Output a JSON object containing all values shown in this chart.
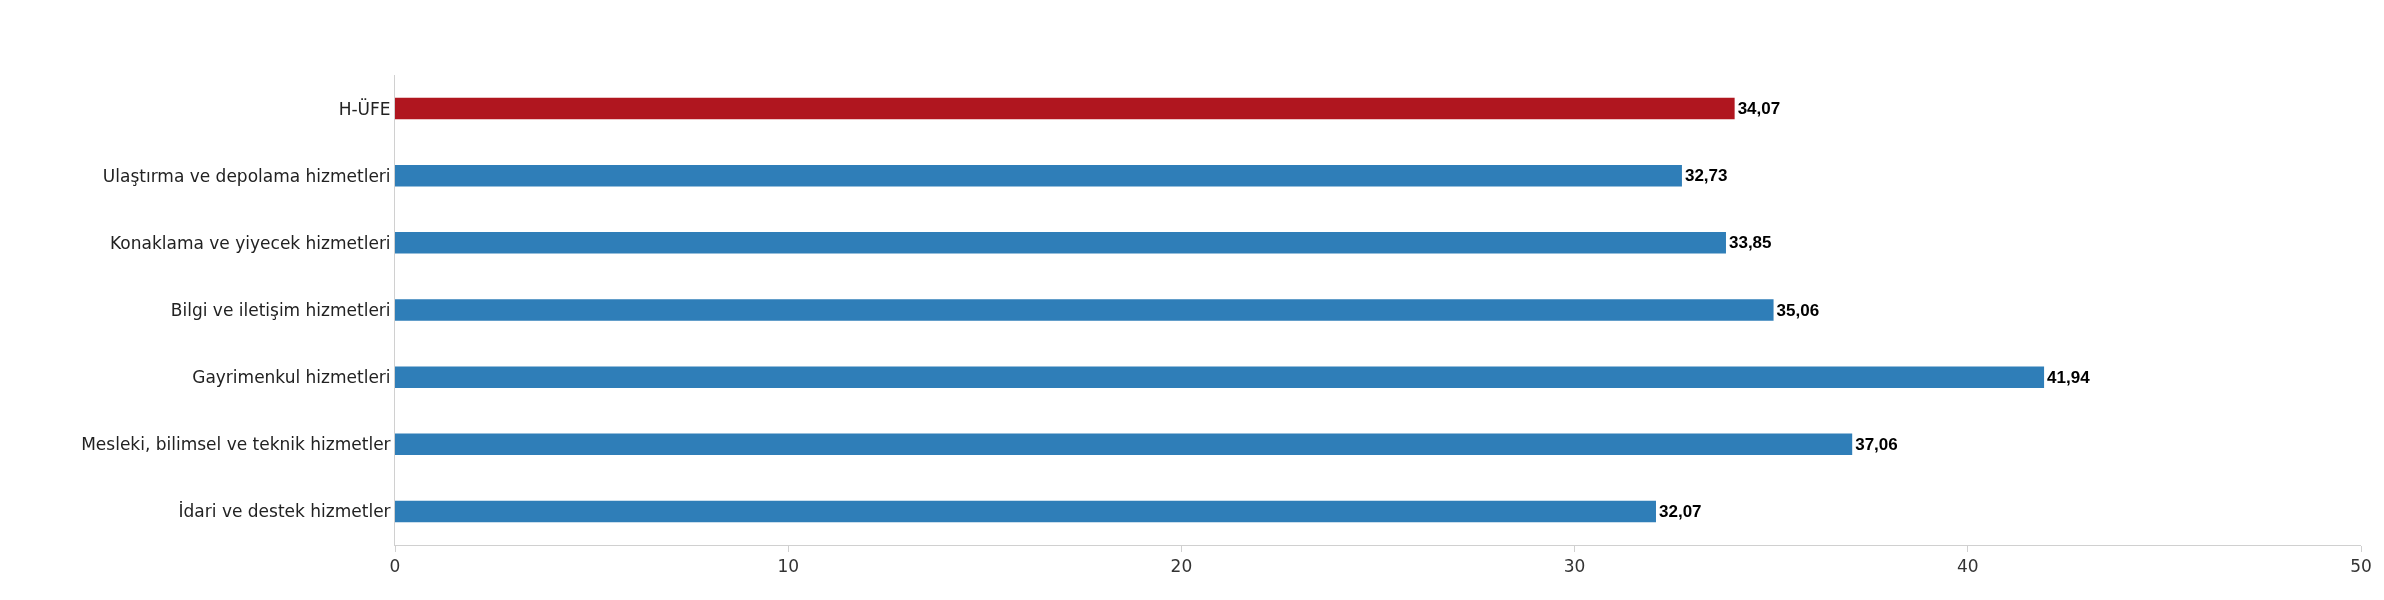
{
  "chart_data": {
    "type": "bar",
    "orientation": "horizontal",
    "categories": [
      "H-ÜFE",
      "Ulaştırma ve depolama hizmetleri",
      "Konaklama ve yiyecek hizmetleri",
      "Bilgi ve iletişim hizmetleri",
      "Gayrimenkul hizmetleri",
      "Mesleki, bilimsel ve teknik hizmetler",
      "İdari ve destek hizmetler"
    ],
    "values": [
      34.07,
      32.73,
      33.85,
      35.06,
      41.94,
      37.06,
      32.07
    ],
    "colors": [
      "#b0161f",
      "#2f7eb8",
      "#2f7eb8",
      "#2f7eb8",
      "#2f7eb8",
      "#2f7eb8",
      "#2f7eb8"
    ],
    "value_labels": [
      "34,07",
      "32,73",
      "33,85",
      "35,06",
      "41,94",
      "37,06",
      "32,07"
    ],
    "xlim": [
      0,
      50
    ],
    "xticks": [
      0,
      10,
      20,
      30,
      40,
      50
    ],
    "grid": false,
    "legend": false
  }
}
